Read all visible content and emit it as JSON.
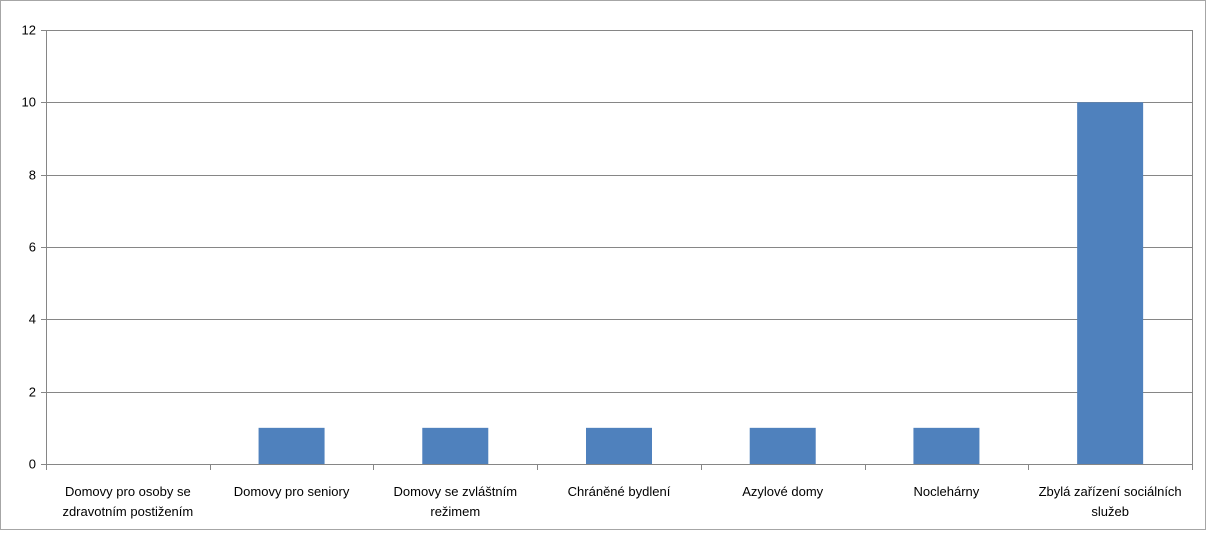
{
  "chart_data": {
    "type": "bar",
    "title": "",
    "xlabel": "",
    "ylabel": "",
    "categories": [
      [
        "Domovy pro osoby se",
        "zdravotním postižením"
      ],
      [
        "Domovy pro seniory"
      ],
      [
        "Domovy se zvláštním",
        "režimem"
      ],
      [
        "Chráněné bydlení"
      ],
      [
        "Azylové domy"
      ],
      [
        "Noclehárny"
      ],
      [
        "Zbylá zařízení sociálních",
        "služeb"
      ]
    ],
    "values": [
      0,
      1,
      1,
      1,
      1,
      1,
      10
    ],
    "ylim": [
      0,
      12
    ],
    "yticks": [
      0,
      2,
      4,
      6,
      8,
      10,
      12
    ],
    "grid": true,
    "legend": "none",
    "colors": {
      "bar": "#4F81BD",
      "grid": "#868686",
      "axis": "#868686",
      "frame": "#a6a6a6"
    }
  }
}
